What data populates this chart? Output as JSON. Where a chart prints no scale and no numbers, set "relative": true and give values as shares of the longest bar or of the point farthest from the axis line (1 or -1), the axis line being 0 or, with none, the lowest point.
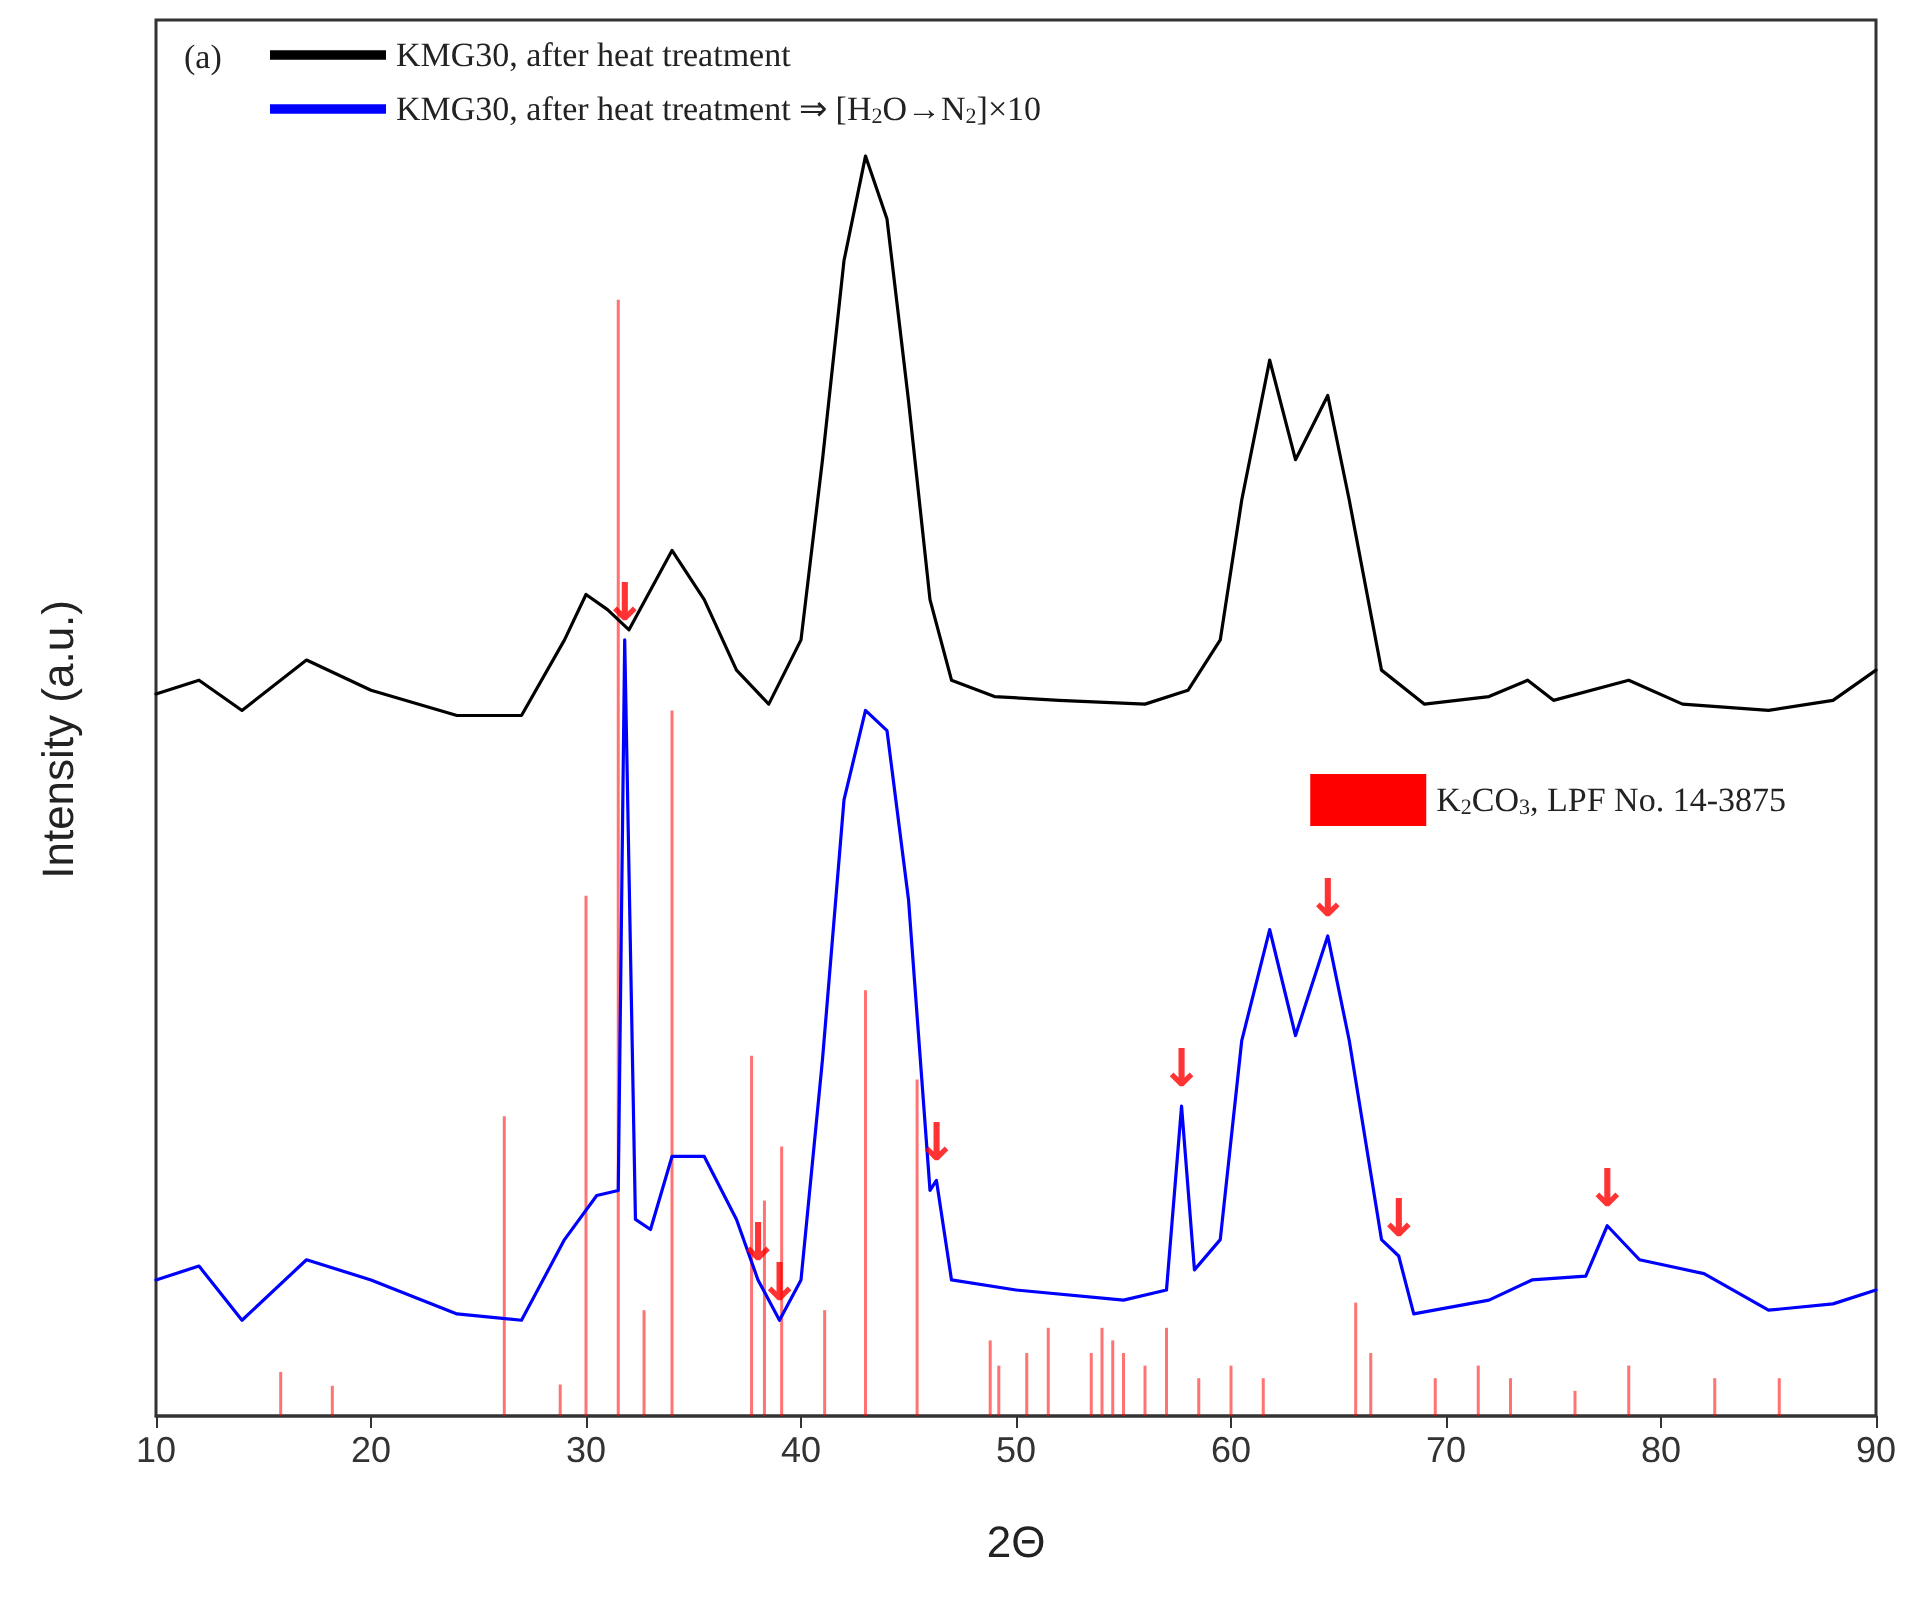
{
  "chart_data": {
    "type": "line",
    "xlabel": "2Θ",
    "ylabel": "Intensity (a.u.)",
    "relative": true,
    "xlim": [
      10,
      90
    ],
    "xticks": [
      10,
      20,
      30,
      40,
      50,
      60,
      70,
      80,
      90
    ],
    "grid": false,
    "legend": "top left",
    "marker": "none",
    "line_style": "solid",
    "series": [
      {
        "name": "KMG30, after heat treatment",
        "color": "#000000",
        "x": [
          10,
          12,
          14,
          17,
          20,
          24,
          27,
          29,
          30,
          31,
          32,
          34,
          35.5,
          37,
          38.5,
          40,
          41,
          42,
          43,
          44,
          45,
          46,
          47,
          49,
          52,
          56,
          58,
          59.5,
          60.5,
          61.8,
          63,
          64.5,
          65.5,
          67,
          69,
          72,
          73.8,
          75,
          78.5,
          81,
          85,
          88,
          90
        ],
        "values": [
          0.573,
          0.584,
          0.56,
          0.6,
          0.576,
          0.556,
          0.556,
          0.616,
          0.652,
          0.64,
          0.624,
          0.687,
          0.648,
          0.592,
          0.565,
          0.616,
          0.759,
          0.917,
          1,
          0.95,
          0.806,
          0.648,
          0.584,
          0.571,
          0.568,
          0.565,
          0.576,
          0.616,
          0.727,
          0.838,
          0.759,
          0.81,
          0.727,
          0.592,
          0.565,
          0.571,
          0.584,
          0.568,
          0.584,
          0.565,
          0.56,
          0.568,
          0.592
        ]
      },
      {
        "name": "KMG30, after heat treatment ⇒ [H$_{2}$O→N$_{2}$]×10",
        "color": "#0000ff",
        "x": [
          10,
          12,
          14,
          17,
          20,
          24,
          27,
          29,
          30.5,
          31.5,
          31.8,
          32.3,
          33,
          34,
          35.5,
          37,
          38,
          39,
          40,
          41,
          42,
          43,
          44,
          45,
          46,
          46.3,
          47,
          50,
          55,
          57,
          57.7,
          58.3,
          59.5,
          60.5,
          61.8,
          63,
          64.5,
          65.5,
          67,
          67.8,
          68.5,
          72,
          74,
          76.5,
          77.5,
          79,
          82,
          85,
          88,
          90
        ],
        "values": [
          0.108,
          0.119,
          0.076,
          0.124,
          0.108,
          0.081,
          0.076,
          0.14,
          0.175,
          0.179,
          0.616,
          0.156,
          0.148,
          0.206,
          0.206,
          0.156,
          0.108,
          0.076,
          0.108,
          0.283,
          0.489,
          0.56,
          0.544,
          0.41,
          0.179,
          0.187,
          0.108,
          0.1,
          0.092,
          0.1,
          0.246,
          0.116,
          0.14,
          0.298,
          0.386,
          0.302,
          0.381,
          0.298,
          0.14,
          0.127,
          0.081,
          0.092,
          0.108,
          0.111,
          0.151,
          0.124,
          0.113,
          0.084,
          0.089,
          0.1
        ]
      },
      {
        "name": "K$_{2}$CO$_{3}$, LPF No. 14-3875",
        "type": "bar",
        "color": "#ff0000",
        "x": [
          15.8,
          18.2,
          26.2,
          28.8,
          30,
          31.5,
          32.7,
          34,
          37.7,
          38.3,
          39.1,
          41.1,
          43,
          45.4,
          48.8,
          49.2,
          50.5,
          51.5,
          53.5,
          54,
          54.5,
          55,
          56,
          57,
          58.5,
          60,
          61.5,
          65.8,
          66.5,
          69.5,
          71.5,
          73,
          76,
          78.5,
          82.5,
          85.5
        ],
        "values": [
          0.035,
          0.024,
          0.238,
          0.025,
          0.413,
          0.886,
          0.084,
          0.56,
          0.286,
          0.171,
          0.214,
          0.084,
          0.338,
          0.267,
          0.06,
          0.04,
          0.05,
          0.07,
          0.05,
          0.07,
          0.06,
          0.05,
          0.04,
          0.07,
          0.03,
          0.04,
          0.03,
          0.09,
          0.05,
          0.03,
          0.04,
          0.03,
          0.02,
          0.04,
          0.03,
          0.03
        ]
      }
    ],
    "annotations": [
      "(a)",
      {
        "text": "↓",
        "x": 31.8,
        "y": 0.616
      },
      {
        "text": "↓",
        "x": 38,
        "y": 0.108
      },
      {
        "text": "↓",
        "x": 39,
        "y": 0.076
      },
      {
        "text": "↓",
        "x": 46.3,
        "y": 0.187
      },
      {
        "text": "↓",
        "x": 57.7,
        "y": 0.246
      },
      {
        "text": "↓",
        "x": 64.5,
        "y": 0.381
      },
      {
        "text": "↓",
        "x": 67.8,
        "y": 0.127
      },
      {
        "text": "↓",
        "x": 77.5,
        "y": 0.151
      }
    ]
  }
}
